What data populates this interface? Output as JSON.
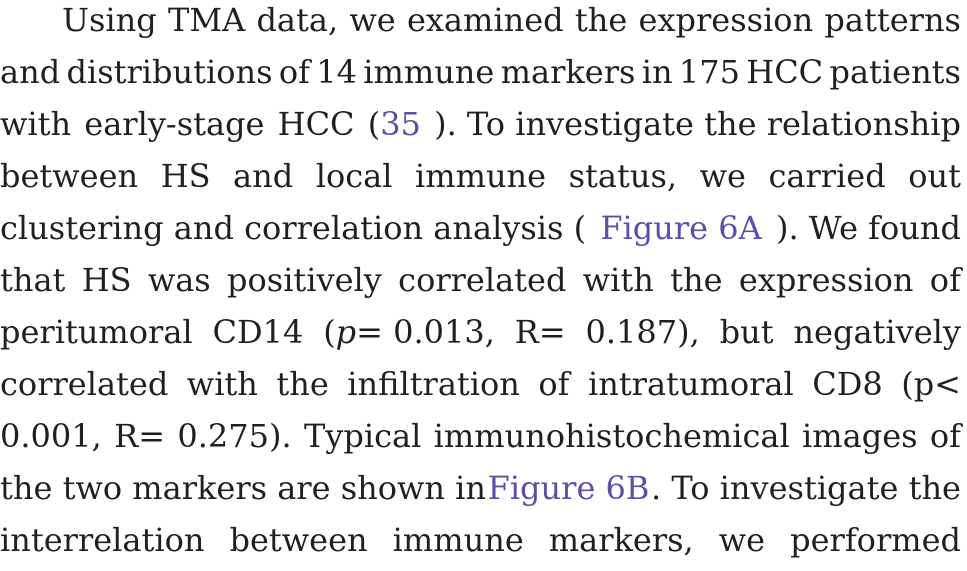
{
  "paragraph": {
    "line_1": [
      "Using",
      "TMA",
      "data,",
      "we",
      "examined",
      "the",
      "expression",
      "patterns"
    ],
    "line_2": [
      "and",
      "distributions",
      "of",
      "14",
      "immune",
      "markers",
      "in",
      "175",
      "HCC",
      "patients"
    ],
    "line_3": {
      "before_ref": [
        "with",
        "early-stage",
        "HCC"
      ],
      "open_paren": "(",
      "ref": "35",
      "after_ref": "). To investigate the relationship"
    },
    "line_4": [
      "between",
      "HS",
      "and",
      "local",
      "immune",
      "status,",
      "we",
      "carried",
      "out"
    ],
    "line_5": {
      "before_ref": "clustering and correlation analysis (",
      "ref": "Figure 6A",
      "after_ref": "). We found"
    },
    "line_6": [
      "that",
      "HS",
      "was",
      "positively",
      "correlated",
      "with",
      "the",
      "expression",
      "of"
    ],
    "line_7": {
      "lead": [
        "peritumoral",
        "CD14"
      ],
      "p_open": "(",
      "p_symbol": "p",
      "p_rest": "= 0.013,",
      "tail": [
        "R=",
        "0.187),",
        "but",
        "negatively"
      ]
    },
    "line_8": [
      "correlated",
      "with",
      "the",
      "infiltration",
      "of",
      "intratumoral",
      "CD8",
      "(p<"
    ],
    "line_9": [
      "0.001,",
      "R=",
      "0.275).",
      "Typical",
      "immunohistochemical",
      "images",
      "of"
    ],
    "line_10": {
      "before_ref": "the two markers are shown in ",
      "ref": "Figure 6B",
      "after_ref": ". To investigate the"
    },
    "line_11": [
      "interrelation",
      "between",
      "immune",
      "markers,",
      "we",
      "performed"
    ]
  },
  "colors": {
    "text": "#231f20",
    "link": "#5b4fa8",
    "background": "#ffffff"
  }
}
